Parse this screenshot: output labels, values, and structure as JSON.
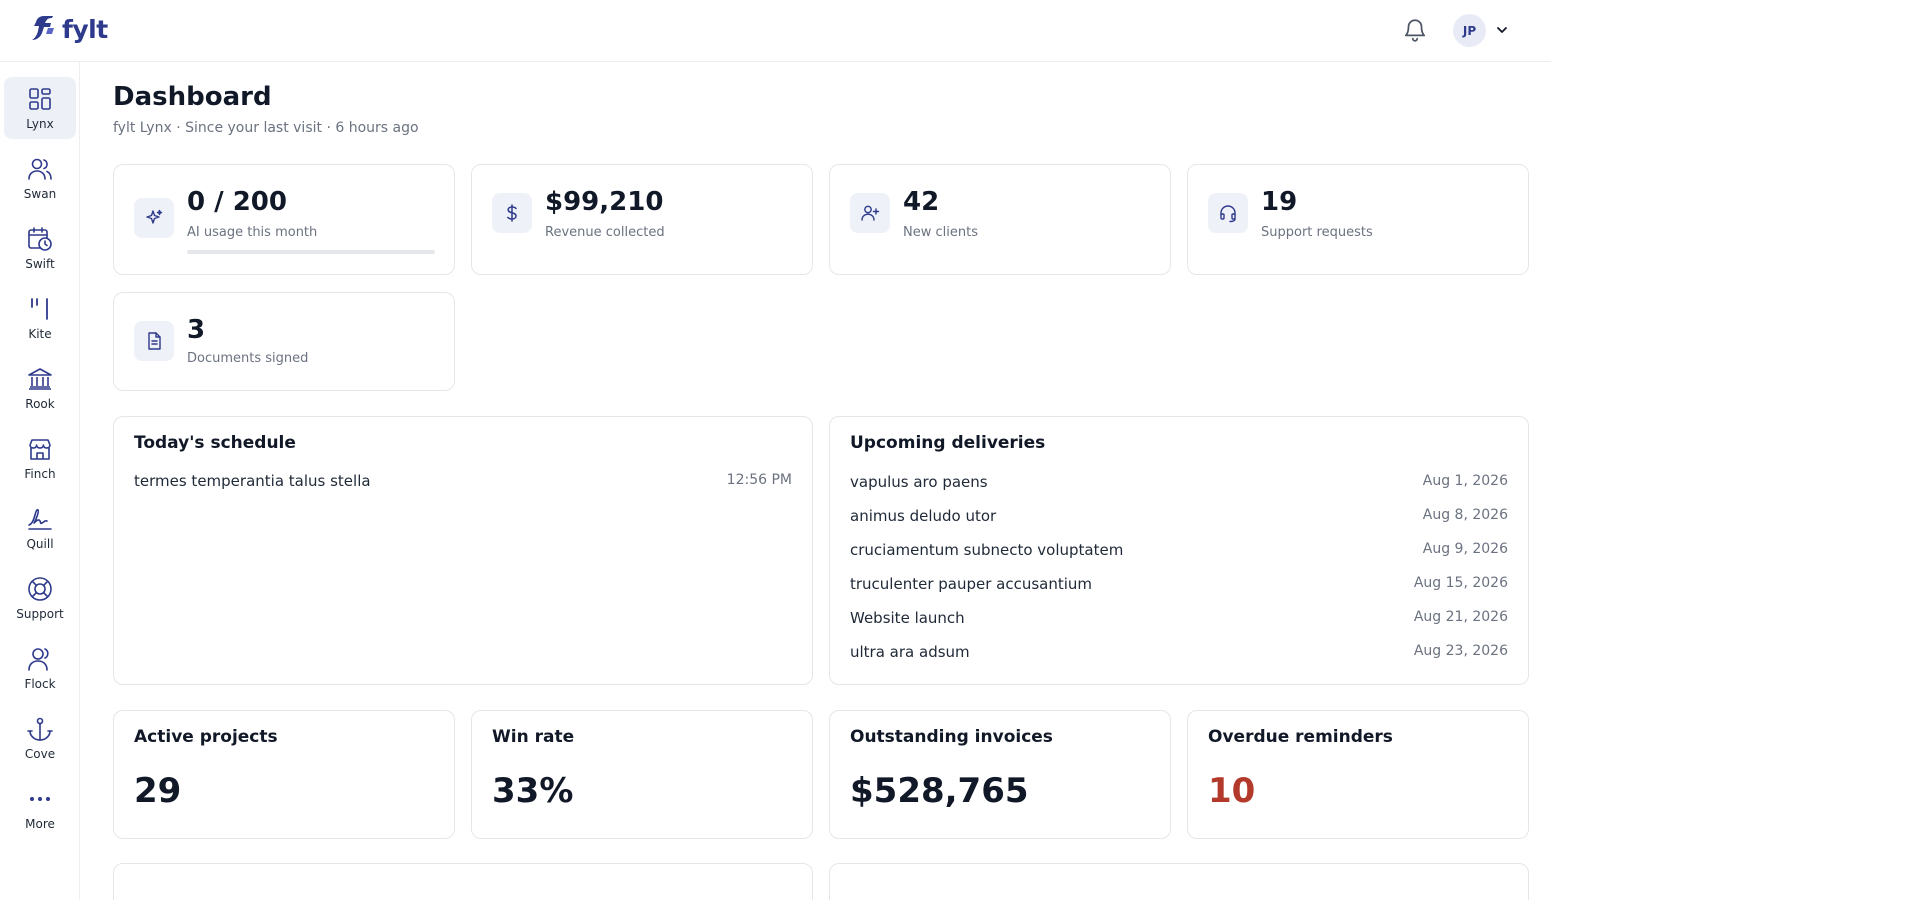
{
  "app": {
    "brand": "fylt",
    "brand_color": "#2e3a8c"
  },
  "header": {
    "avatar_initials": "JP"
  },
  "sidebar": {
    "items": [
      {
        "label": "Lynx",
        "icon": "grid-icon"
      },
      {
        "label": "Swan",
        "icon": "users-icon"
      },
      {
        "label": "Swift",
        "icon": "calendar-clock-icon"
      },
      {
        "label": "Kite",
        "icon": "bars-icon"
      },
      {
        "label": "Rook",
        "icon": "bank-icon"
      },
      {
        "label": "Finch",
        "icon": "store-icon"
      },
      {
        "label": "Quill",
        "icon": "signature-icon"
      },
      {
        "label": "Support",
        "icon": "lifebuoy-icon"
      },
      {
        "label": "Flock",
        "icon": "user-icon"
      },
      {
        "label": "Cove",
        "icon": "anchor-icon"
      },
      {
        "label": "More",
        "icon": "more-icon"
      }
    ]
  },
  "page": {
    "title": "Dashboard",
    "subtitle": "fylt Lynx · Since your last visit · 6 hours ago"
  },
  "stats": [
    {
      "value": "0 / 200",
      "label": "AI usage this month",
      "icon": "sparkle-icon",
      "progress": 0
    },
    {
      "value": "$99,210",
      "label": "Revenue collected",
      "icon": "dollar-icon"
    },
    {
      "value": "42",
      "label": "New clients",
      "icon": "user-plus-icon"
    },
    {
      "value": "19",
      "label": "Support requests",
      "icon": "headset-icon"
    },
    {
      "value": "3",
      "label": "Documents signed",
      "icon": "document-icon"
    }
  ],
  "schedule": {
    "title": "Today's schedule",
    "items": [
      {
        "name": "termes temperantia talus stella",
        "time": "12:56 PM"
      }
    ]
  },
  "deliveries": {
    "title": "Upcoming deliveries",
    "items": [
      {
        "name": "vapulus aro paens",
        "date": "Aug 1, 2026"
      },
      {
        "name": "animus deludo utor",
        "date": "Aug 8, 2026"
      },
      {
        "name": "cruciamentum subnecto voluptatem",
        "date": "Aug 9, 2026"
      },
      {
        "name": "truculenter pauper accusantium",
        "date": "Aug 15, 2026"
      },
      {
        "name": "Website launch",
        "date": "Aug 21, 2026"
      },
      {
        "name": "ultra ara adsum",
        "date": "Aug 23, 2026"
      }
    ]
  },
  "metrics": [
    {
      "title": "Active projects",
      "value": "29"
    },
    {
      "title": "Win rate",
      "value": "33%"
    },
    {
      "title": "Outstanding invoices",
      "value": "$528,765"
    },
    {
      "title": "Overdue reminders",
      "value": "10",
      "color": "#b33a2b"
    }
  ]
}
